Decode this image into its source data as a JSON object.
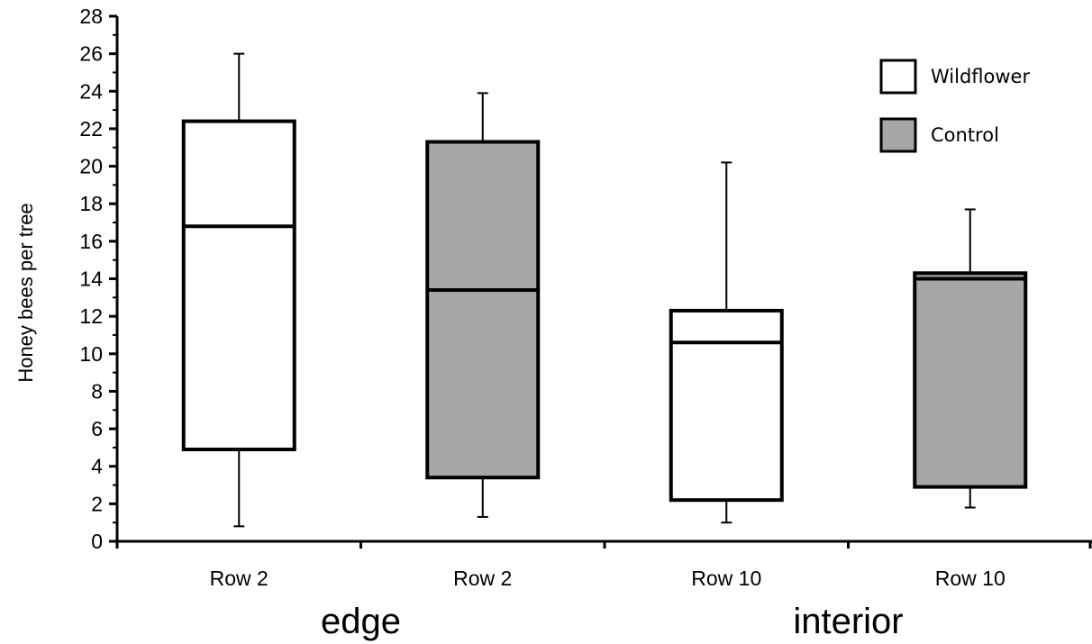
{
  "chart_data": {
    "type": "box",
    "ylabel": "Honey bees per tree",
    "ylim": [
      0,
      28
    ],
    "ytick_step": 2,
    "categories": [
      "Row 2",
      "Row 2",
      "Row 10",
      "Row 10"
    ],
    "groups": [
      {
        "label": "edge",
        "categories": [
          0,
          1
        ]
      },
      {
        "label": "interior",
        "categories": [
          2,
          3
        ]
      }
    ],
    "legend": {
      "placement": "top-right",
      "entries": [
        {
          "name": "Wildflower",
          "color": "#ffffff"
        },
        {
          "name": "Control",
          "color": "#a6a6a6"
        }
      ]
    },
    "boxes": [
      {
        "category": "Row 2",
        "group": "edge",
        "series": "Wildflower",
        "min": 0.8,
        "q1": 4.9,
        "median": 16.8,
        "q3": 22.4,
        "max": 26.0
      },
      {
        "category": "Row 2",
        "group": "edge",
        "series": "Control",
        "min": 1.3,
        "q1": 3.4,
        "median": 13.4,
        "q3": 21.3,
        "max": 23.9
      },
      {
        "category": "Row 10",
        "group": "interior",
        "series": "Wildflower",
        "min": 1.0,
        "q1": 2.2,
        "median": 10.6,
        "q3": 12.3,
        "max": 20.2
      },
      {
        "category": "Row 10",
        "group": "interior",
        "series": "Control",
        "min": 1.8,
        "q1": 2.9,
        "median": 14.0,
        "q3": 14.3,
        "max": 17.7
      }
    ]
  }
}
